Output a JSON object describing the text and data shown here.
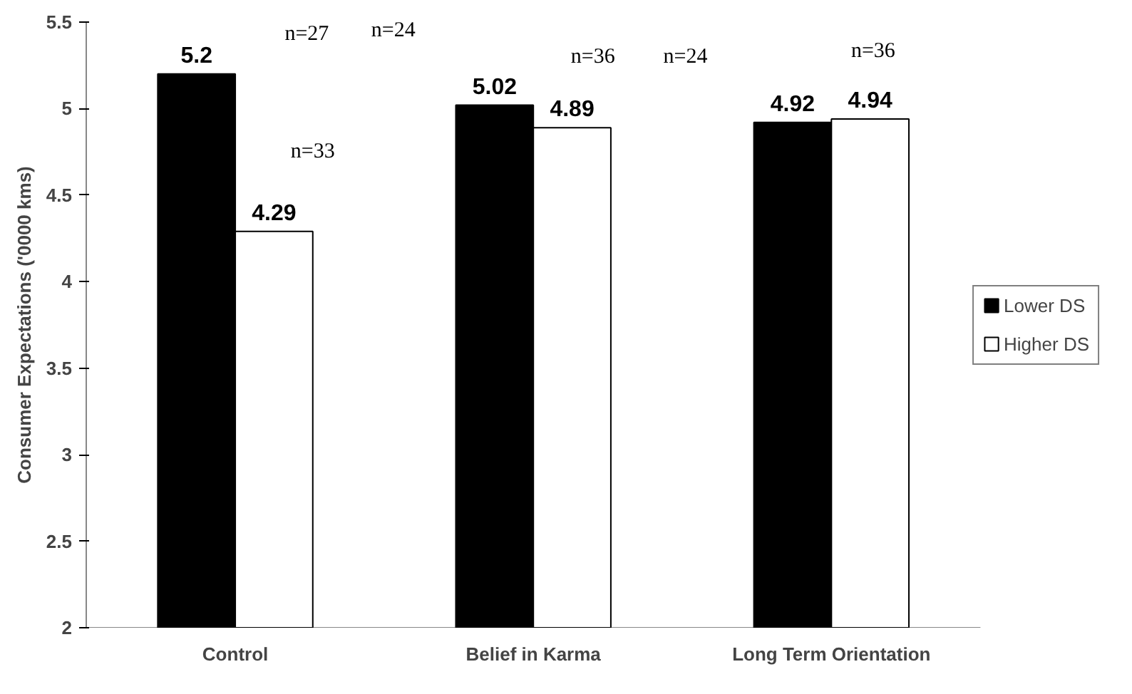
{
  "chart_data": {
    "type": "bar",
    "ylabel": "Consumer Expectations ('0000 kms)",
    "categories": [
      "Control",
      "Belief in Karma",
      "Long Term Orientation"
    ],
    "series": [
      {
        "name": "Lower DS",
        "color": "#000000",
        "values": [
          5.2,
          5.02,
          4.92
        ]
      },
      {
        "name": "Higher DS",
        "color": "#ffffff",
        "values": [
          4.29,
          4.89,
          4.94
        ]
      }
    ],
    "ylim": [
      2,
      5.5
    ],
    "yticks": [
      2,
      2.5,
      3,
      3.5,
      4,
      4.5,
      5,
      5.5
    ],
    "grid": false,
    "legend": "right",
    "data_labels": true,
    "annotations": [
      "n=27",
      "n=33",
      "n=24",
      "n=36",
      "n=24",
      "n=36"
    ]
  }
}
